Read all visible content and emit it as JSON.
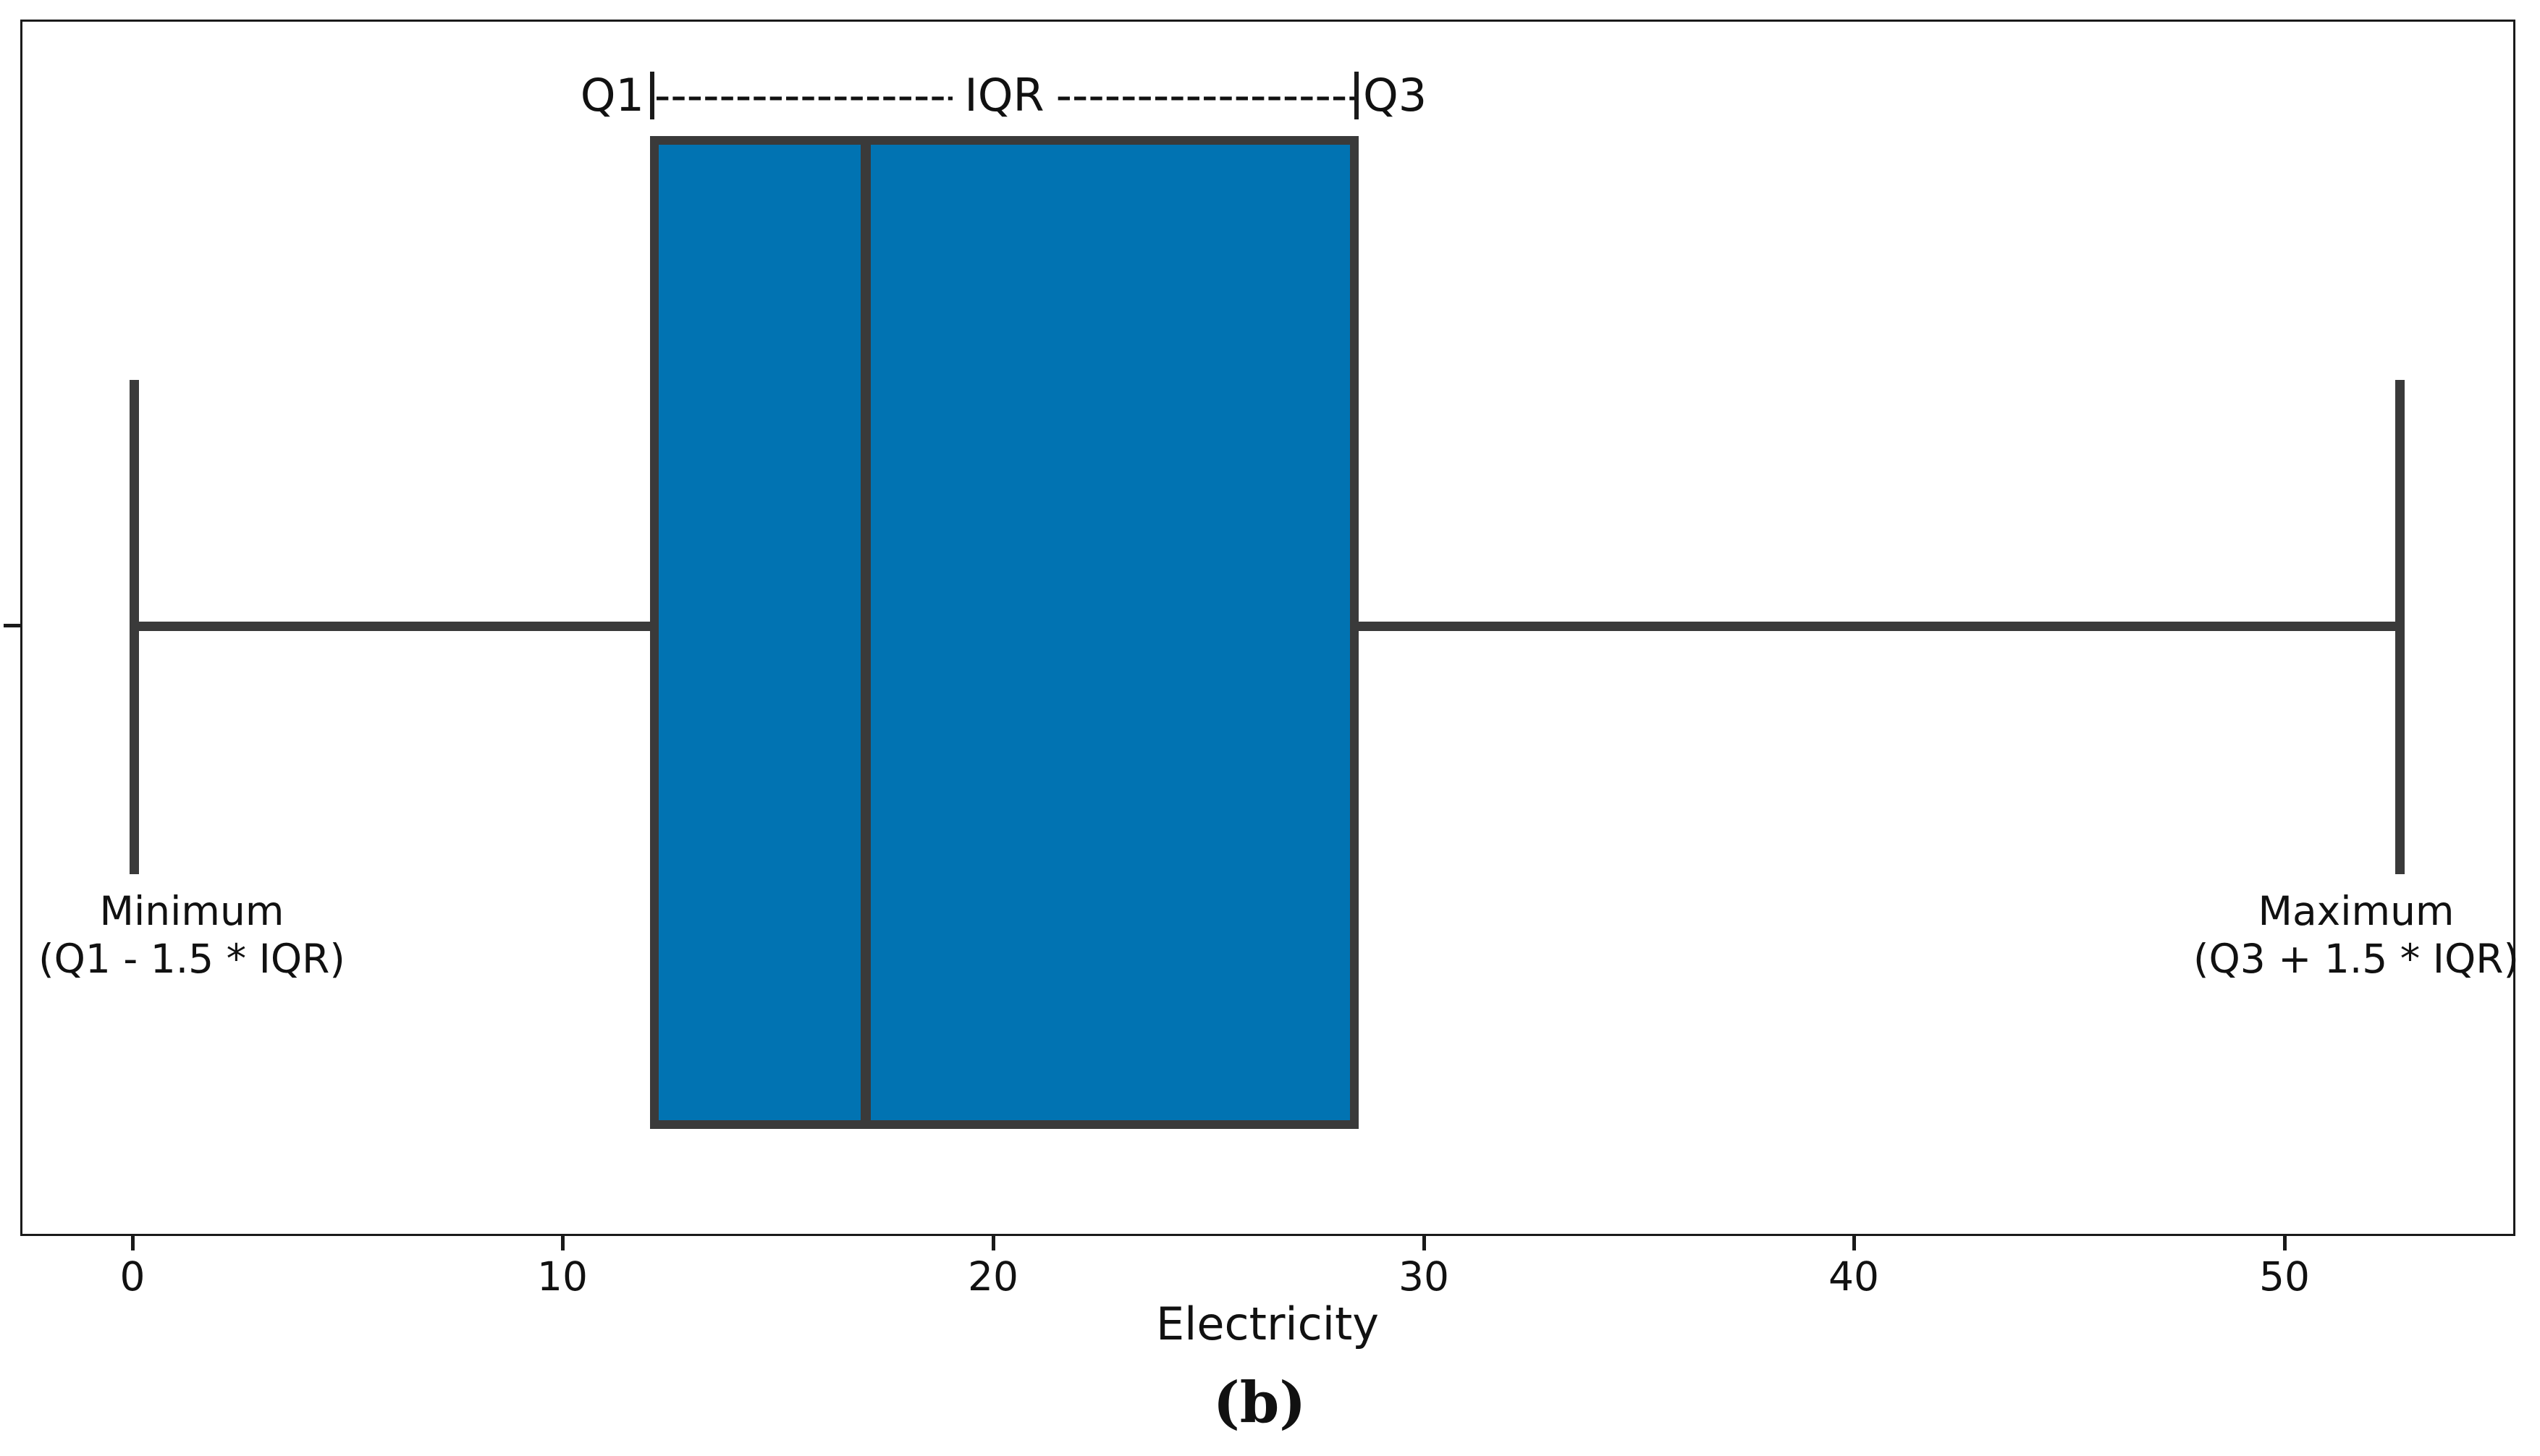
{
  "figure": {
    "caption": "(b)"
  },
  "annotation": {
    "q1": "Q1",
    "iqr": "IQR",
    "q3": "Q3",
    "dashes": "------------------------------------------------------------"
  },
  "labels": {
    "min_title": "Minimum",
    "min_formula": "(Q1 - 1.5 * IQR)",
    "max_title": "Maximum",
    "max_formula": "(Q3 + 1.5 * IQR)"
  },
  "axis": {
    "xlabel": "Electricity",
    "xticks": [
      "0",
      "10",
      "20",
      "30",
      "40",
      "50"
    ]
  },
  "colors": {
    "box_fill": "#0173b2",
    "box_edge": "#3a3a3a",
    "spine": "#1a1a1a"
  },
  "chart_data": {
    "type": "box",
    "orientation": "horizontal",
    "title": "",
    "xlabel": "Electricity",
    "ylabel": "",
    "xticks": [
      0,
      10,
      20,
      30,
      40,
      50
    ],
    "xlim": [
      -2.6,
      55.4
    ],
    "grid": false,
    "legend": false,
    "series": [
      {
        "name": "Electricity",
        "whisker_low": 0,
        "q1": 12,
        "median": 17,
        "q3": 28.5,
        "whisker_high": 53,
        "outliers": []
      }
    ],
    "annotations": [
      "Q1|-------------------- IQR --------------------|Q3",
      "Minimum (Q1 - 1.5 * IQR)",
      "Maximum (Q3 + 1.5 * IQR)"
    ],
    "caption": "(b)"
  }
}
